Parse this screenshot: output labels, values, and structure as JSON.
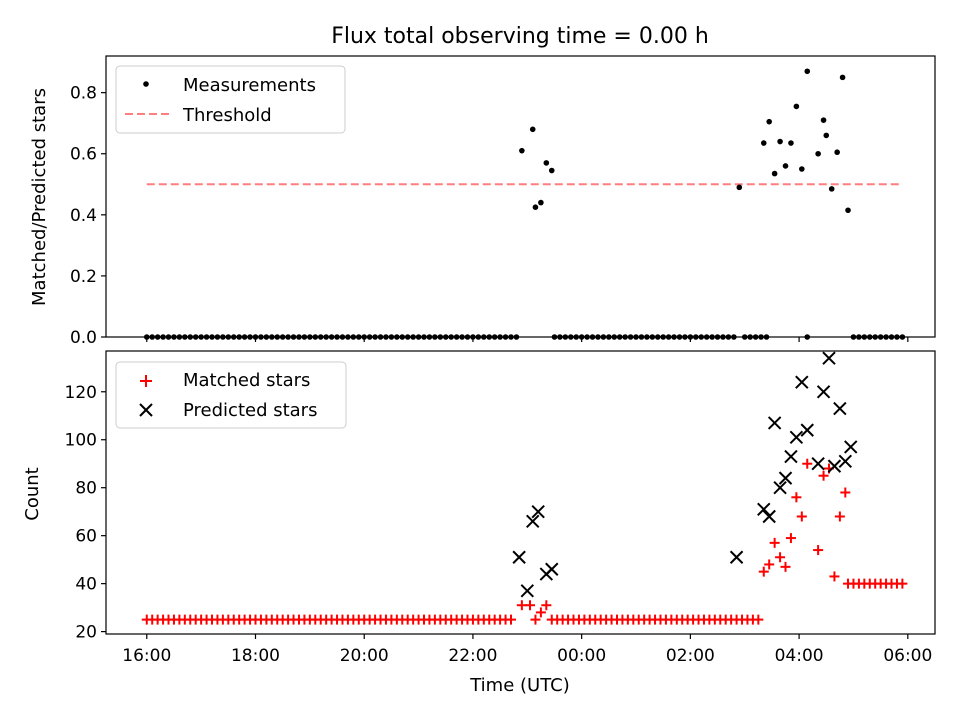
{
  "figure": {
    "title": "Flux total observing time = 0.00 h"
  },
  "chart_data": [
    {
      "type": "scatter",
      "panel": "top",
      "ylabel": "Matched/Predicted stars",
      "xlabel": "",
      "xlim": [
        15.25,
        30.5
      ],
      "ylim": [
        0.0,
        0.92
      ],
      "yticks": [
        0.0,
        0.2,
        0.4,
        0.6,
        0.8
      ],
      "ytick_labels": [
        "0.0",
        "0.2",
        "0.4",
        "0.6",
        "0.8"
      ],
      "legend": {
        "placement": "upper-left",
        "entries": [
          "Measurements",
          "Threshold"
        ]
      },
      "series": [
        {
          "name": "Measurements",
          "color": "#000000",
          "points": [
            [
              22.9,
              0.61
            ],
            [
              23.1,
              0.68
            ],
            [
              23.15,
              0.425
            ],
            [
              23.25,
              0.44
            ],
            [
              23.35,
              0.57
            ],
            [
              23.45,
              0.545
            ],
            [
              26.9,
              0.49
            ],
            [
              27.35,
              0.635
            ],
            [
              27.45,
              0.705
            ],
            [
              27.55,
              0.535
            ],
            [
              27.65,
              0.64
            ],
            [
              27.75,
              0.56
            ],
            [
              27.85,
              0.635
            ],
            [
              27.95,
              0.755
            ],
            [
              28.05,
              0.55
            ],
            [
              28.15,
              0.87
            ],
            [
              28.35,
              0.6
            ],
            [
              28.45,
              0.71
            ],
            [
              28.5,
              0.66
            ],
            [
              28.6,
              0.485
            ],
            [
              28.7,
              0.605
            ],
            [
              28.8,
              0.85
            ],
            [
              28.9,
              0.415
            ],
            [
              28.15,
              0.0
            ]
          ],
          "zero_runs": [
            [
              16.0,
              22.8,
              0.1
            ],
            [
              23.5,
              26.8,
              0.1
            ],
            [
              27.0,
              27.4,
              0.1
            ],
            [
              29.0,
              29.9,
              0.1
            ]
          ]
        },
        {
          "name": "Threshold",
          "color": "#ff7f7f",
          "style": "dashed",
          "x": [
            16.0,
            29.85
          ],
          "y": [
            0.5,
            0.5
          ]
        }
      ]
    },
    {
      "type": "scatter",
      "panel": "bottom",
      "ylabel": "Count",
      "xlabel": "Time (UTC)",
      "xlim": [
        15.25,
        30.5
      ],
      "ylim": [
        19,
        137
      ],
      "yticks": [
        20,
        40,
        60,
        80,
        100,
        120
      ],
      "ytick_labels": [
        "20",
        "40",
        "60",
        "80",
        "100",
        "120"
      ],
      "xticks": [
        16,
        18,
        20,
        22,
        24,
        26,
        28,
        30
      ],
      "xtick_labels": [
        "16:00",
        "18:00",
        "20:00",
        "22:00",
        "00:00",
        "02:00",
        "04:00",
        "06:00"
      ],
      "legend": {
        "placement": "upper-left",
        "entries": [
          "Matched stars",
          "Predicted stars"
        ]
      },
      "series": [
        {
          "name": "Matched stars",
          "color": "#ff0000",
          "marker": "plus",
          "points": [
            [
              22.9,
              31
            ],
            [
              23.05,
              31
            ],
            [
              23.15,
              25
            ],
            [
              23.25,
              28
            ],
            [
              23.35,
              31
            ],
            [
              27.35,
              45
            ],
            [
              27.45,
              48
            ],
            [
              27.55,
              57
            ],
            [
              27.65,
              51
            ],
            [
              27.75,
              47
            ],
            [
              27.85,
              59
            ],
            [
              27.95,
              76
            ],
            [
              28.05,
              68
            ],
            [
              28.15,
              90
            ],
            [
              28.35,
              54
            ],
            [
              28.45,
              85
            ],
            [
              28.55,
              88
            ],
            [
              28.65,
              43
            ],
            [
              28.75,
              68
            ],
            [
              28.85,
              78
            ]
          ],
          "runs": [
            [
              16.0,
              22.75,
              0.1,
              25
            ],
            [
              23.45,
              27.3,
              0.1,
              25
            ],
            [
              28.9,
              29.9,
              0.1,
              40
            ]
          ]
        },
        {
          "name": "Predicted stars",
          "color": "#000000",
          "marker": "x",
          "points": [
            [
              22.85,
              51
            ],
            [
              23.0,
              37
            ],
            [
              23.1,
              66
            ],
            [
              23.2,
              70
            ],
            [
              23.35,
              44
            ],
            [
              23.45,
              46
            ],
            [
              26.85,
              51
            ],
            [
              27.35,
              71
            ],
            [
              27.45,
              68
            ],
            [
              27.55,
              107
            ],
            [
              27.65,
              80
            ],
            [
              27.75,
              84
            ],
            [
              27.85,
              93
            ],
            [
              27.95,
              101
            ],
            [
              28.05,
              124
            ],
            [
              28.15,
              104
            ],
            [
              28.35,
              90
            ],
            [
              28.45,
              120
            ],
            [
              28.55,
              134
            ],
            [
              28.65,
              89
            ],
            [
              28.75,
              113
            ],
            [
              28.85,
              91
            ],
            [
              28.95,
              97
            ]
          ]
        }
      ]
    }
  ]
}
